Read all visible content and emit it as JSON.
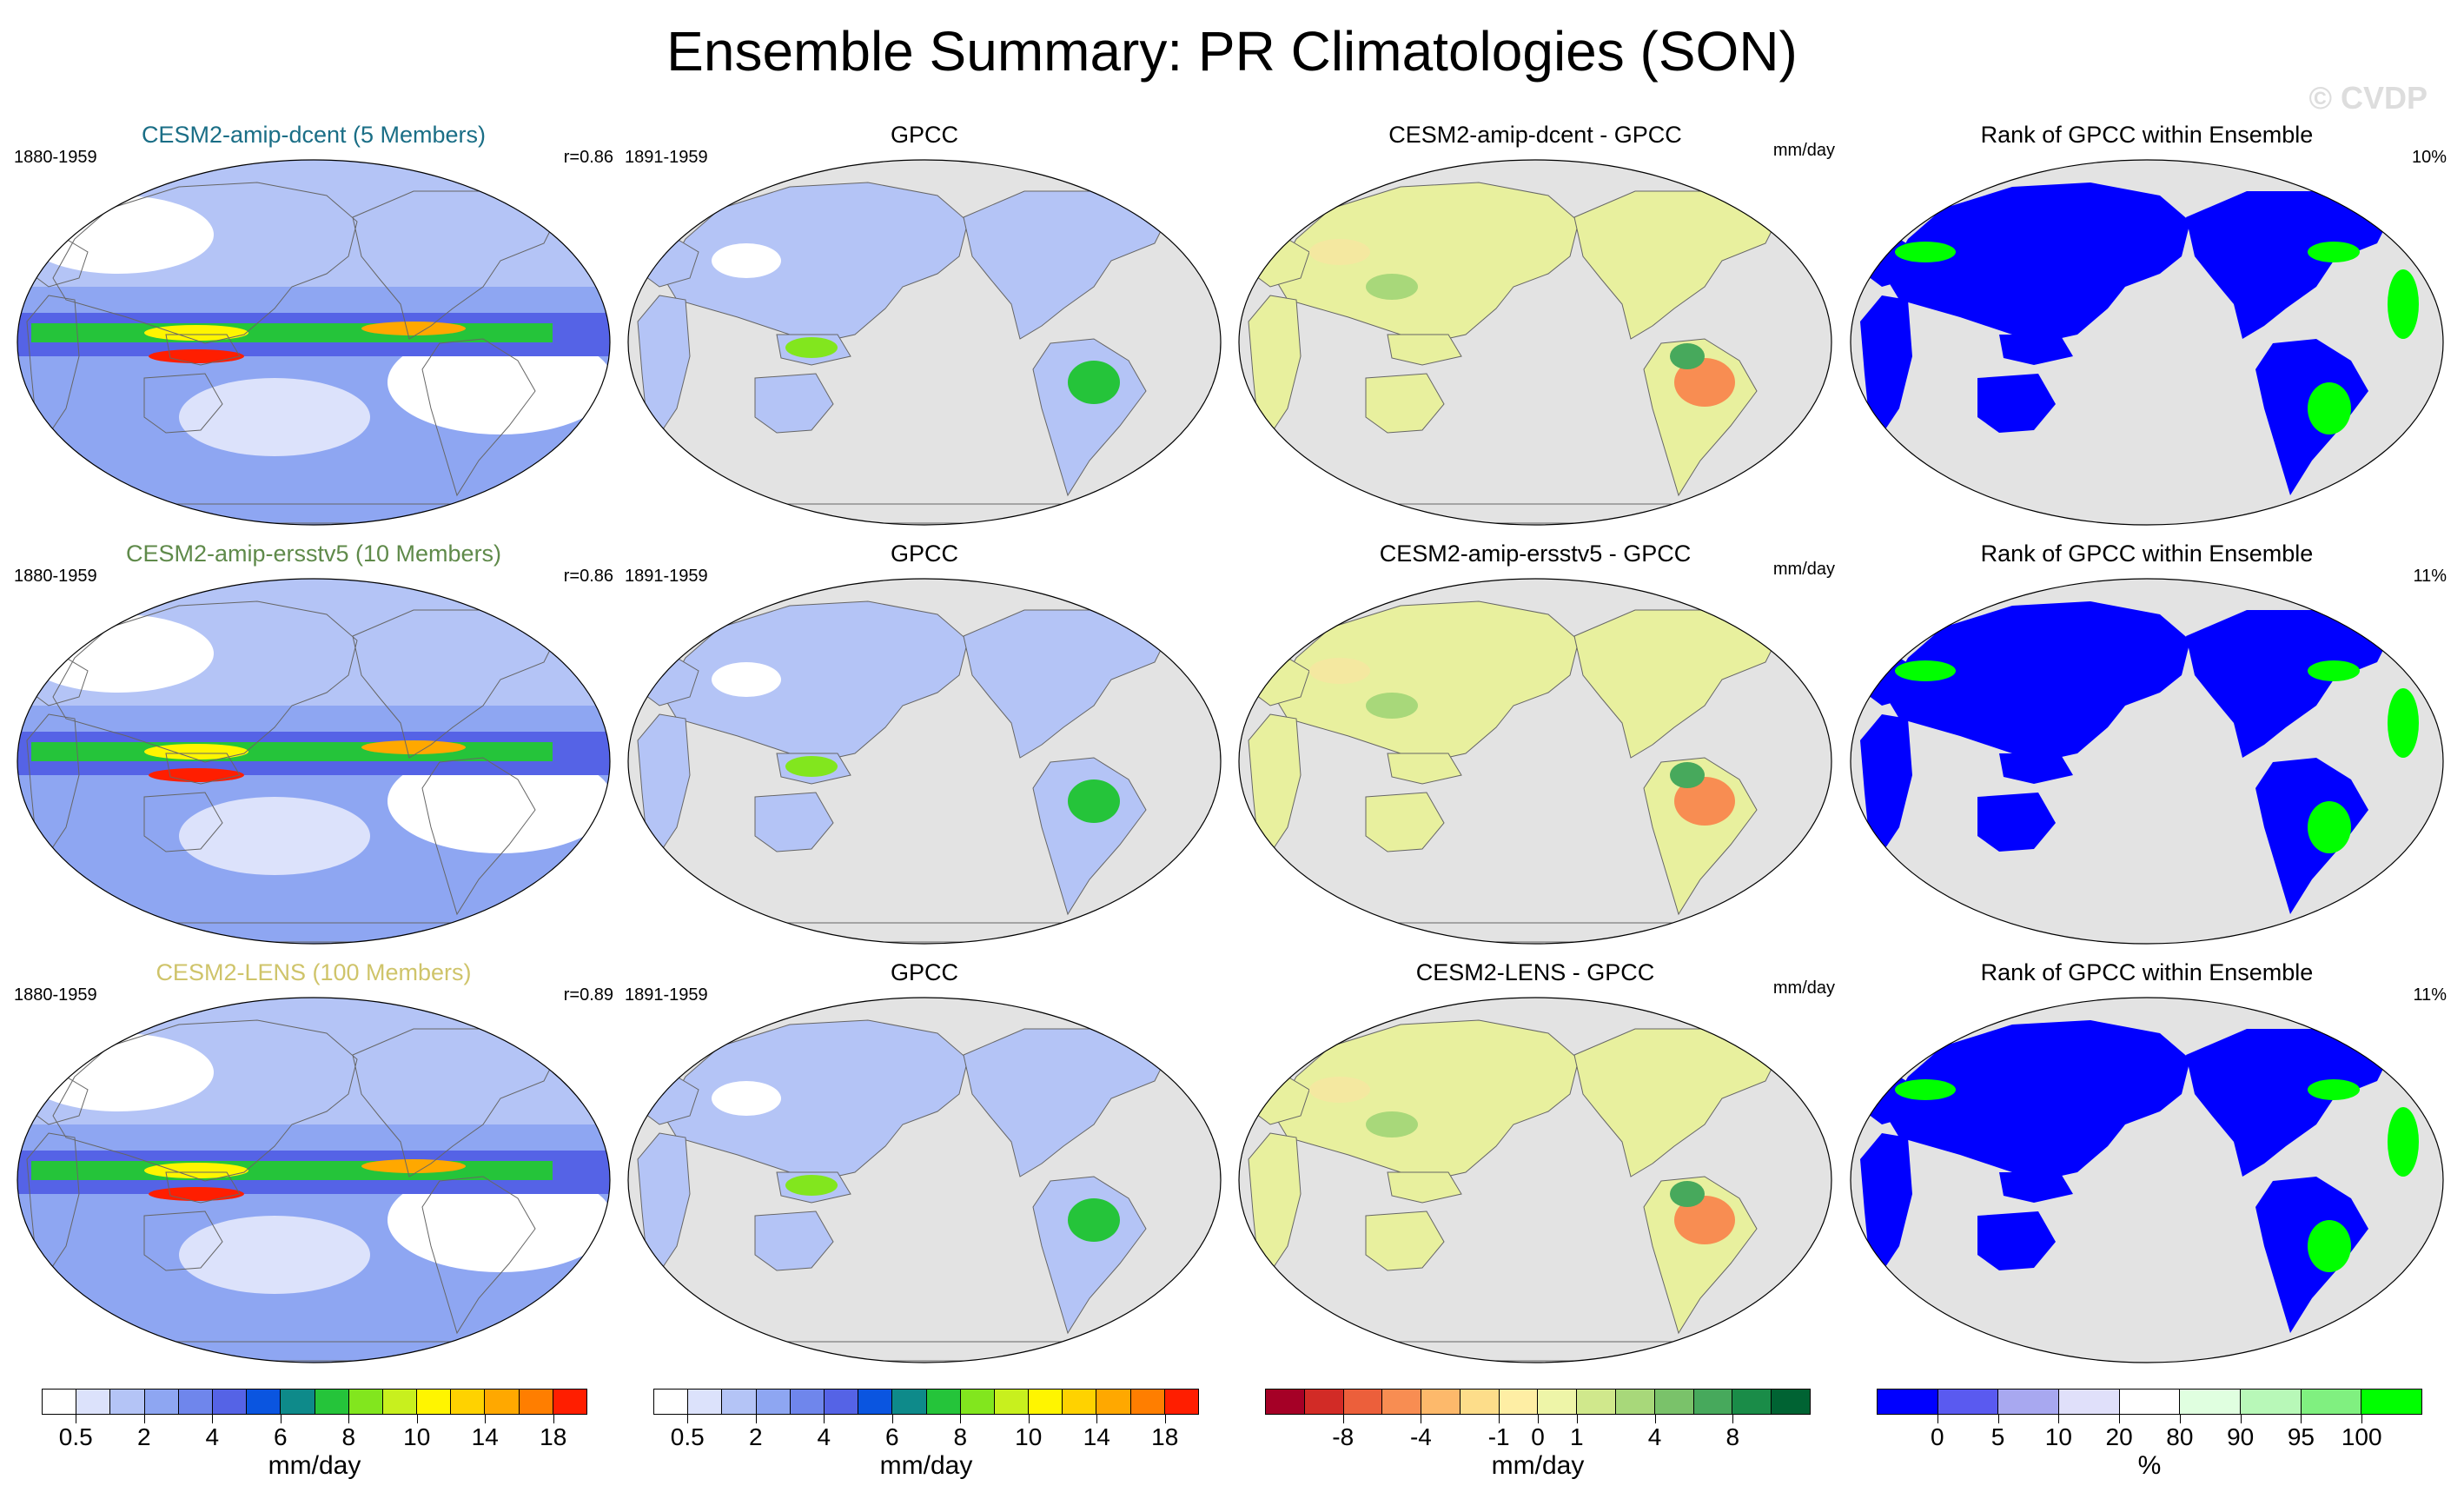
{
  "title": "Ensemble Summary: PR Climatologies (SON)",
  "watermark": "© CVDP",
  "colors": {
    "ocean_gray": "#e3e3e3",
    "land_light": "#e8f09e",
    "land_yellow": "#f4e8a0",
    "rank_blue": "#0000ff",
    "rank_green": "#00ff00"
  },
  "rows": [
    {
      "ensemble_title": "CESM2-amip-dcent (5 Members)",
      "ensemble_title_color": "#1a6e86",
      "ensemble_years": "1880-1959",
      "correlation": "r=0.86",
      "obs_title": "GPCC",
      "obs_years": "1891-1959",
      "diff_title": "CESM2-amip-dcent - GPCC",
      "diff_units": "mm/day",
      "rank_title": "Rank of GPCC within Ensemble",
      "rank_percent": "10%"
    },
    {
      "ensemble_title": "CESM2-amip-ersstv5 (10 Members)",
      "ensemble_title_color": "#5f8a4a",
      "ensemble_years": "1880-1959",
      "correlation": "r=0.86",
      "obs_title": "GPCC",
      "obs_years": "1891-1959",
      "diff_title": "CESM2-amip-ersstv5 - GPCC",
      "diff_units": "mm/day",
      "rank_title": "Rank of GPCC within Ensemble",
      "rank_percent": "11%"
    },
    {
      "ensemble_title": "CESM2-LENS (100 Members)",
      "ensemble_title_color": "#cfc46a",
      "ensemble_years": "1880-1959",
      "correlation": "r=0.89",
      "obs_title": "GPCC",
      "obs_years": "1891-1959",
      "diff_title": "CESM2-LENS - GPCC",
      "diff_units": "mm/day",
      "rank_title": "Rank of GPCC within Ensemble",
      "rank_percent": "11%"
    }
  ],
  "colorbars": [
    {
      "name": "precip-model",
      "colors": [
        "#ffffff",
        "#dce2fb",
        "#b4c4f6",
        "#8ea6f2",
        "#6f86ec",
        "#5563e6",
        "#0a55e0",
        "#0e8a8a",
        "#25c43a",
        "#82e61e",
        "#c8f01e",
        "#fff500",
        "#ffd200",
        "#ffa800",
        "#ff7e00",
        "#ff1e00"
      ],
      "labels": [
        "0.5",
        "2",
        "4",
        "6",
        "8",
        "10",
        "14",
        "18"
      ],
      "units": "mm/day"
    },
    {
      "name": "precip-obs",
      "colors": [
        "#ffffff",
        "#dce2fb",
        "#b4c4f6",
        "#8ea6f2",
        "#6f86ec",
        "#5563e6",
        "#0a55e0",
        "#0e8a8a",
        "#25c43a",
        "#82e61e",
        "#c8f01e",
        "#fff500",
        "#ffd200",
        "#ffa800",
        "#ff7e00",
        "#ff1e00"
      ],
      "labels": [
        "0.5",
        "2",
        "4",
        "6",
        "8",
        "10",
        "14",
        "18"
      ],
      "units": "mm/day"
    },
    {
      "name": "difference",
      "colors": [
        "#a50026",
        "#d22b26",
        "#ec5f3b",
        "#f88d52",
        "#fdb96b",
        "#fddd8a",
        "#feeea4",
        "#eef5a8",
        "#d0e88c",
        "#a8d87a",
        "#7ac26a",
        "#47a95c",
        "#1a8c48",
        "#006333"
      ],
      "labels": [
        "-8",
        "-4",
        "-1",
        "0",
        "1",
        "4",
        "8"
      ],
      "units": "mm/day"
    },
    {
      "name": "rank",
      "colors": [
        "#0000ff",
        "#5a5af0",
        "#a8a8f0",
        "#e0e0fa",
        "#ffffff",
        "#e0ffe0",
        "#b8f8b8",
        "#80f080",
        "#00ff00"
      ],
      "labels": [
        "0",
        "5",
        "10",
        "20",
        "80",
        "90",
        "95",
        "100"
      ],
      "units": "%"
    }
  ]
}
